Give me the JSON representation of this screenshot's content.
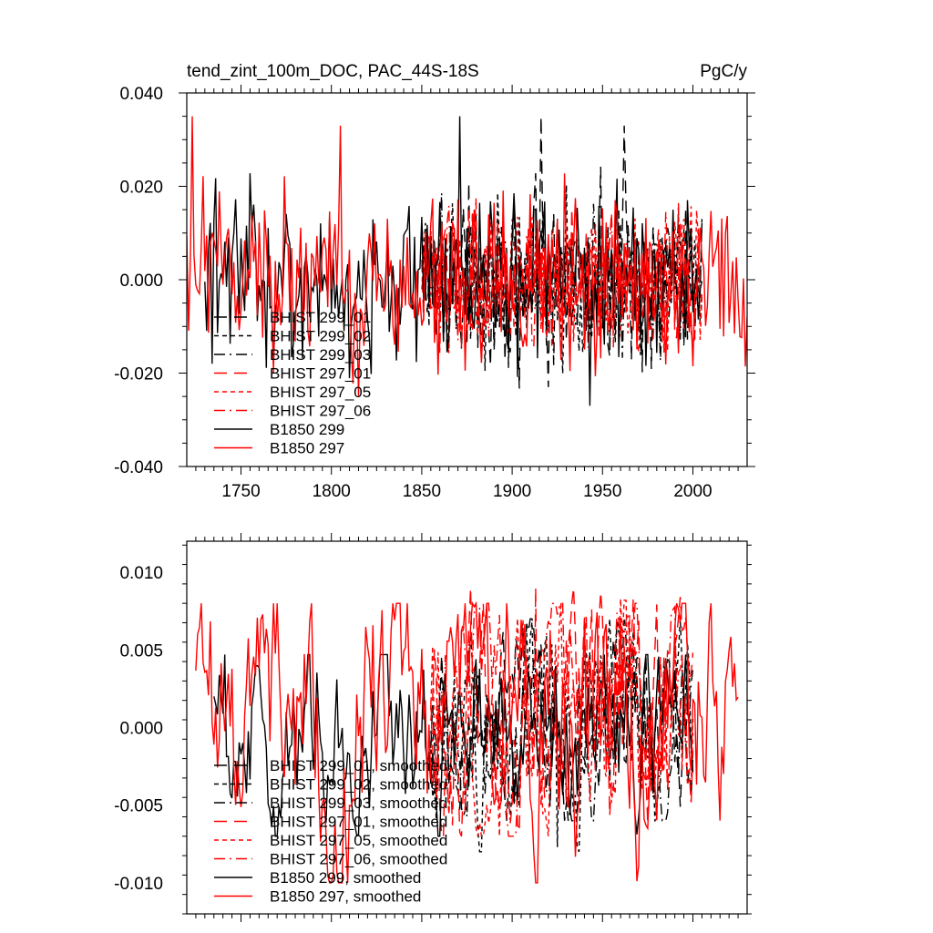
{
  "chart_data": [
    {
      "type": "line",
      "title": "tend_zint_100m_DOC, PAC_44S-18S",
      "units": "PgC/y",
      "xlim": [
        1720,
        2030
      ],
      "ylim": [
        -0.04,
        0.04
      ],
      "xticks": [
        1750,
        1800,
        1850,
        1900,
        1950,
        2000
      ],
      "xtick_labels": [
        "1750",
        "1800",
        "1850",
        "1900",
        "1950",
        "2000"
      ],
      "yticks": [
        -0.04,
        -0.02,
        0.0,
        0.02,
        0.04
      ],
      "ytick_labels": [
        "-0.040",
        "-0.020",
        "0.000",
        "0.020",
        "0.040"
      ],
      "legend_position": "bottom-left",
      "series": [
        {
          "name": "BHIST 299_01",
          "color": "#000000",
          "dash": "long-dash",
          "x_range": [
            1850,
            2005
          ],
          "approx_mean": 0.0,
          "approx_range": [
            -0.024,
            0.035
          ],
          "peaks": [
            [
              1916,
              0.035
            ],
            [
              1962,
              0.033
            ],
            [
              1920,
              -0.023
            ]
          ]
        },
        {
          "name": "BHIST 299_02",
          "color": "#000000",
          "dash": "short-dash",
          "x_range": [
            1850,
            2005
          ],
          "approx_mean": 0.0,
          "approx_range": [
            -0.022,
            0.03
          ]
        },
        {
          "name": "BHIST 299_03",
          "color": "#000000",
          "dash": "dash-dot",
          "x_range": [
            1850,
            2005
          ],
          "approx_mean": 0.0,
          "approx_range": [
            -0.022,
            0.032
          ]
        },
        {
          "name": "BHIST 297_01",
          "color": "#ff0000",
          "dash": "long-dash",
          "x_range": [
            1850,
            2005
          ],
          "approx_mean": 0.0,
          "approx_range": [
            -0.025,
            0.028
          ]
        },
        {
          "name": "BHIST 297_05",
          "color": "#ff0000",
          "dash": "short-dash",
          "x_range": [
            1850,
            2005
          ],
          "approx_mean": 0.0,
          "approx_range": [
            -0.027,
            0.03
          ]
        },
        {
          "name": "BHIST 297_06",
          "color": "#ff0000",
          "dash": "dash-dot",
          "x_range": [
            1850,
            2005
          ],
          "approx_mean": 0.0,
          "approx_range": [
            -0.025,
            0.028
          ]
        },
        {
          "name": "B1850 299",
          "color": "#000000",
          "dash": "solid",
          "x_range": [
            1730,
            2005
          ],
          "approx_mean": 0.0,
          "approx_range": [
            -0.027,
            0.035
          ],
          "peaks": [
            [
              1871,
              0.035
            ],
            [
              1943,
              -0.027
            ]
          ]
        },
        {
          "name": "B1850 297",
          "color": "#ff0000",
          "dash": "solid",
          "x_range": [
            1720,
            2030
          ],
          "approx_mean": 0.0,
          "approx_range": [
            -0.027,
            0.035
          ],
          "peaks": [
            [
              1723,
              0.035
            ],
            [
              1805,
              0.033
            ]
          ]
        }
      ]
    },
    {
      "type": "line",
      "title": "",
      "xlim": [
        1720,
        2030
      ],
      "ylim": [
        -0.012,
        0.012
      ],
      "xticks": [
        1750,
        1800,
        1850,
        1900,
        1950,
        2000
      ],
      "yticks": [
        -0.01,
        -0.005,
        0.0,
        0.005,
        0.01
      ],
      "ytick_labels": [
        "-0.010",
        "-0.005",
        "0.000",
        "0.005",
        "0.010"
      ],
      "legend_position": "bottom-left",
      "series": [
        {
          "name": "BHIST 299_01, smoothed",
          "color": "#000000",
          "dash": "long-dash",
          "x_range": [
            1855,
            2000
          ],
          "approx_range": [
            -0.006,
            0.007
          ]
        },
        {
          "name": "BHIST 299_02, smoothed",
          "color": "#000000",
          "dash": "short-dash",
          "x_range": [
            1855,
            2000
          ],
          "approx_range": [
            -0.008,
            0.007
          ],
          "peaks": [
            [
              1925,
              -0.0077
            ]
          ]
        },
        {
          "name": "BHIST 299_03, smoothed",
          "color": "#000000",
          "dash": "dash-dot",
          "x_range": [
            1855,
            2000
          ],
          "approx_range": [
            -0.006,
            0.007
          ]
        },
        {
          "name": "BHIST 297_01, smoothed",
          "color": "#ff0000",
          "dash": "long-dash",
          "x_range": [
            1855,
            2000
          ],
          "approx_range": [
            -0.007,
            0.009
          ],
          "peaks": [
            [
              1913,
              0.009
            ]
          ]
        },
        {
          "name": "BHIST 297_05, smoothed",
          "color": "#ff0000",
          "dash": "short-dash",
          "x_range": [
            1855,
            2000
          ],
          "approx_range": [
            -0.007,
            0.0088
          ]
        },
        {
          "name": "BHIST 297_06, smoothed",
          "color": "#ff0000",
          "dash": "dash-dot",
          "x_range": [
            1855,
            2000
          ],
          "approx_range": [
            -0.007,
            0.008
          ]
        },
        {
          "name": "B1850 299, smoothed",
          "color": "#000000",
          "dash": "solid",
          "x_range": [
            1735,
            2000
          ],
          "approx_range": [
            -0.007,
            0.0047
          ],
          "peaks": [
            [
              1741,
              0.0047
            ]
          ]
        },
        {
          "name": "B1850 297, smoothed",
          "color": "#ff0000",
          "dash": "solid",
          "x_range": [
            1725,
            2025
          ],
          "approx_range": [
            -0.01,
            0.008
          ],
          "peaks": [
            [
              1770,
              0.008
            ],
            [
              2020,
              0.005
            ]
          ]
        }
      ]
    }
  ]
}
